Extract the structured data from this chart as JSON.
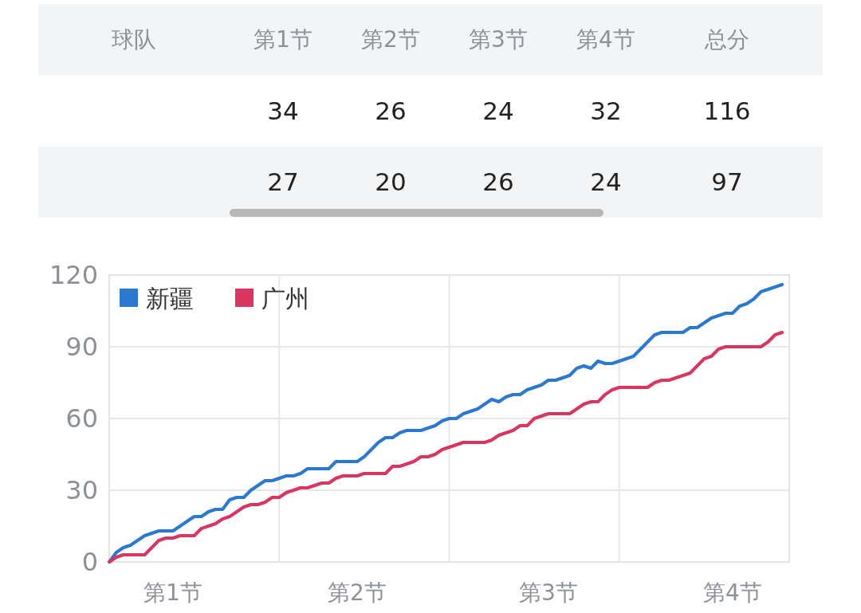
{
  "chart_data": [
    {
      "type": "other",
      "ylabel": "球队",
      "categories": [
        "第1节",
        "第2节",
        "第3节",
        "第4节",
        "总分"
      ],
      "annotations": [
        "34",
        "26",
        "24",
        "32",
        "116",
        "27",
        "20",
        "26",
        "24",
        "97"
      ]
    },
    {
      "type": "line",
      "legend": "top left",
      "grid": "y",
      "line_style": "solid",
      "categories": [
        null,
        null,
        null,
        null,
        null,
        null,
        null,
        null,
        null,
        "第1节",
        null,
        null,
        null,
        null,
        null,
        null,
        null,
        null,
        null,
        null,
        null,
        null,
        null,
        null,
        null,
        null,
        null,
        null,
        null,
        null,
        null,
        null,
        null,
        null,
        null,
        "第2节",
        null,
        null,
        null,
        null,
        null,
        null,
        null,
        null,
        null,
        null,
        null,
        null,
        null,
        null,
        null,
        null,
        null,
        null,
        null,
        null,
        null,
        null,
        null,
        null,
        null,
        null,
        "第3节",
        null,
        null,
        null,
        null,
        null,
        null,
        null,
        null,
        null,
        null,
        null,
        null,
        null,
        null,
        null,
        null,
        null,
        null,
        null,
        null,
        null,
        null,
        null,
        null,
        null,
        "第4节",
        null,
        null,
        null,
        null,
        null,
        null,
        null,
        null
      ],
      "ylim": [
        0,
        120
      ],
      "yticks": [
        0,
        30,
        60,
        90,
        120
      ],
      "series": [
        {
          "name": "新疆",
          "color": "#2a78d0",
          "values": [
            0,
            4,
            6,
            7,
            9,
            11,
            12,
            13,
            13,
            13,
            15,
            17,
            19,
            19,
            21,
            22,
            22,
            26,
            27,
            27,
            30,
            32,
            34,
            34,
            35,
            36,
            36,
            37,
            39,
            39,
            39,
            39,
            42,
            42,
            42,
            42,
            44,
            47,
            50,
            52,
            52,
            54,
            55,
            55,
            55,
            56,
            57,
            59,
            60,
            60,
            62,
            63,
            64,
            66,
            68,
            67,
            69,
            70,
            70,
            72,
            73,
            74,
            76,
            76,
            77,
            78,
            81,
            82,
            81,
            84,
            83,
            83,
            84,
            85,
            86,
            89,
            92,
            95,
            96,
            96,
            96,
            96,
            98,
            98,
            100,
            102,
            103,
            104,
            104,
            107,
            108,
            110,
            113,
            114,
            115,
            116,
            null
          ]
        },
        {
          "name": "广州",
          "color": "#d8355f",
          "values": [
            0,
            2,
            3,
            3,
            3,
            3,
            6,
            9,
            10,
            10,
            11,
            11,
            11,
            14,
            15,
            16,
            18,
            19,
            21,
            23,
            24,
            24,
            25,
            27,
            27,
            29,
            30,
            31,
            31,
            32,
            33,
            33,
            35,
            36,
            36,
            36,
            37,
            37,
            37,
            37,
            40,
            40,
            41,
            42,
            44,
            44,
            45,
            47,
            48,
            49,
            50,
            50,
            50,
            50,
            51,
            53,
            54,
            55,
            57,
            57,
            60,
            61,
            62,
            62,
            62,
            62,
            64,
            66,
            67,
            67,
            70,
            72,
            73,
            73,
            73,
            73,
            73,
            75,
            76,
            76,
            77,
            78,
            79,
            82,
            85,
            86,
            89,
            90,
            90,
            90,
            90,
            90,
            90,
            92,
            95,
            96,
            null
          ]
        }
      ]
    }
  ]
}
